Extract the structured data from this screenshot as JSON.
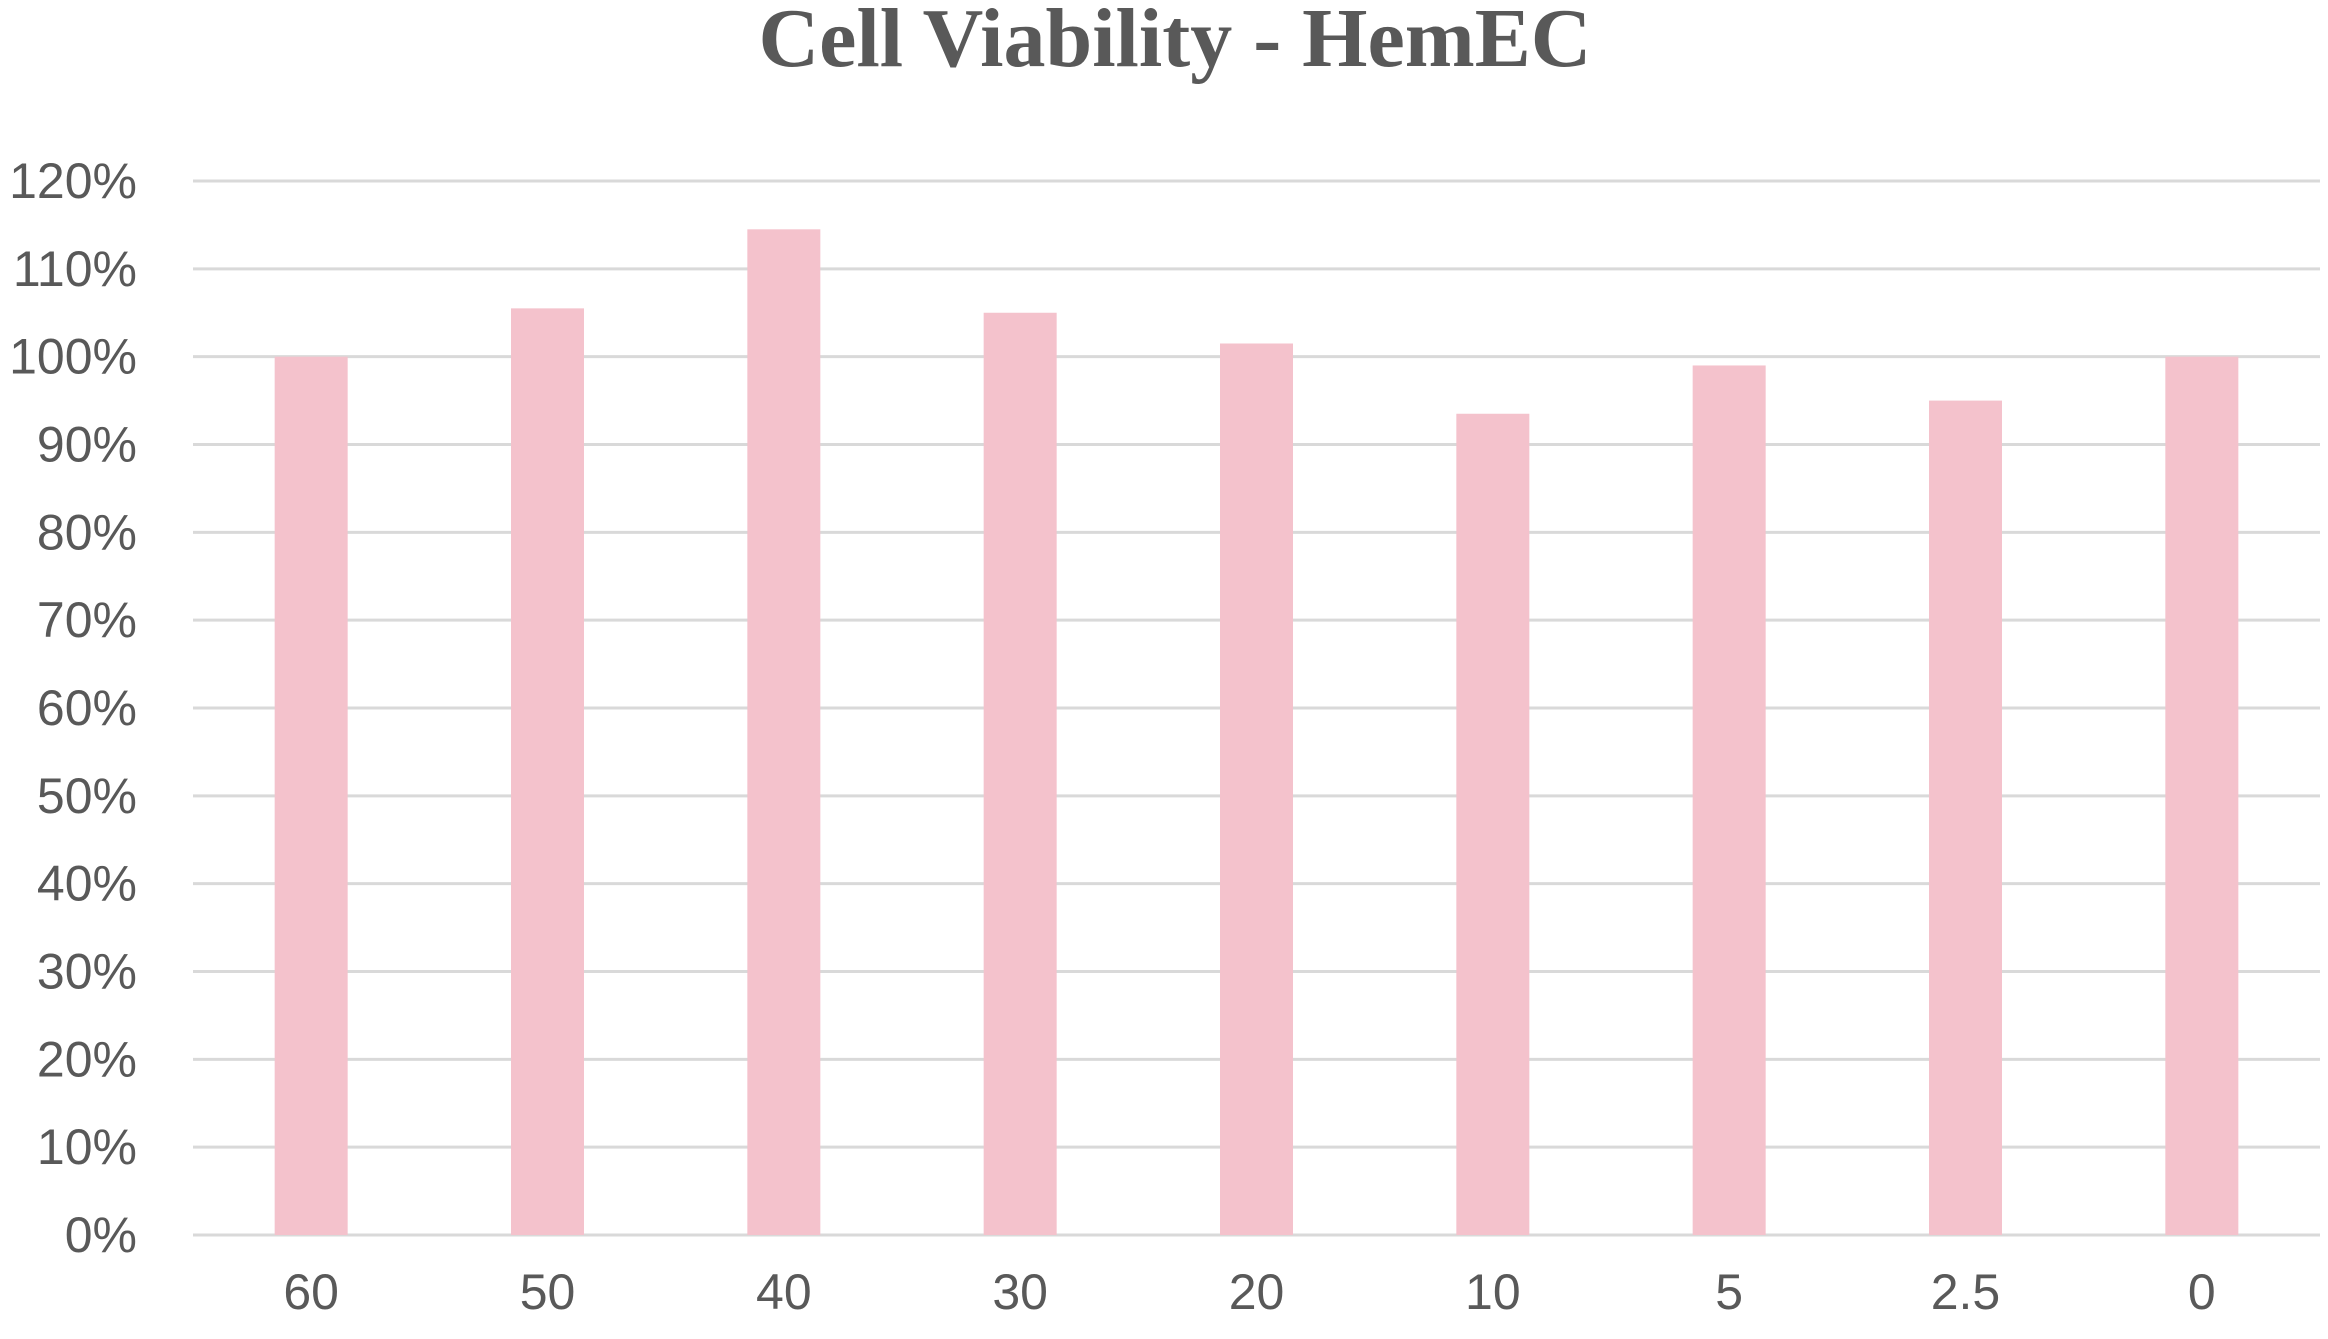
{
  "chart_data": {
    "type": "bar",
    "title": "Cell Viability - HemEC",
    "xlabel": "",
    "ylabel": "",
    "categories": [
      "60",
      "50",
      "40",
      "30",
      "20",
      "10",
      "5",
      "2.5",
      "0"
    ],
    "values": [
      100,
      105.5,
      114.5,
      105,
      101.5,
      93.5,
      99,
      95,
      100
    ],
    "ylim": [
      0,
      120
    ],
    "yticks": [
      "0%",
      "10%",
      "20%",
      "30%",
      "40%",
      "50%",
      "60%",
      "70%",
      "80%",
      "90%",
      "100%",
      "110%",
      "120%"
    ],
    "grid": true,
    "legend": "none",
    "colors": {
      "bar": "#f4c2cc",
      "grid": "#d9d9d9",
      "text": "#595959"
    }
  }
}
